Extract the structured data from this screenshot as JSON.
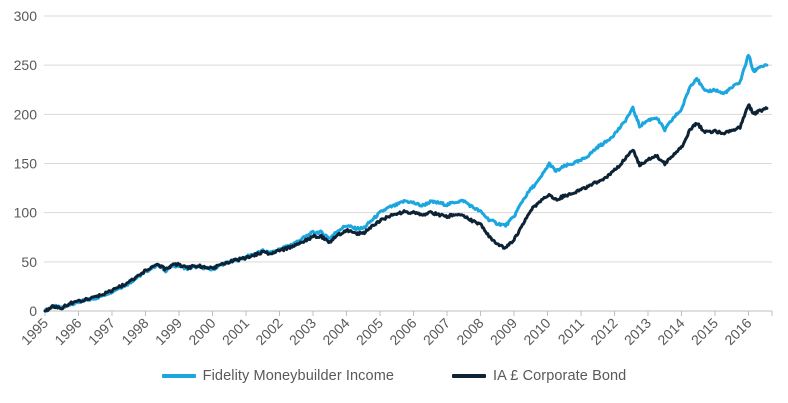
{
  "chart_style": {
    "background": "#FFFFFF",
    "grid_color": "#D9D9D9",
    "axis_color": "#BFBFBF",
    "tick_label_color": "#595959",
    "line_width": 3
  },
  "chart_data": {
    "type": "line",
    "title": "",
    "xlabel": "",
    "ylabel": "",
    "grid": "horizontal",
    "legend_position": "bottom",
    "x_ticks": [
      1995,
      1996,
      1997,
      1998,
      1999,
      2000,
      2001,
      2002,
      2003,
      2004,
      2005,
      2006,
      2007,
      2008,
      2009,
      2010,
      2011,
      2012,
      2013,
      2014,
      2015,
      2016
    ],
    "y_ticks": [
      0,
      50,
      100,
      150,
      200,
      250,
      300
    ],
    "ylim": [
      0,
      300
    ],
    "xlim": [
      1995,
      2016.7
    ],
    "x": [
      1995.0,
      1995.25,
      1995.5,
      1995.75,
      1996.0,
      1996.25,
      1996.5,
      1996.75,
      1997.0,
      1997.25,
      1997.5,
      1997.75,
      1998.0,
      1998.35,
      1998.6,
      1998.8,
      1999.0,
      1999.25,
      1999.5,
      1999.75,
      2000.0,
      2000.25,
      2000.5,
      2000.75,
      2001.0,
      2001.25,
      2001.5,
      2001.75,
      2002.0,
      2002.25,
      2002.5,
      2002.75,
      2003.0,
      2003.25,
      2003.5,
      2003.75,
      2004.0,
      2004.25,
      2004.5,
      2004.75,
      2005.0,
      2005.25,
      2005.5,
      2005.75,
      2006.0,
      2006.25,
      2006.5,
      2006.75,
      2007.0,
      2007.25,
      2007.5,
      2007.75,
      2008.0,
      2008.25,
      2008.5,
      2008.75,
      2009.0,
      2009.25,
      2009.5,
      2009.75,
      2010.05,
      2010.25,
      2010.5,
      2010.75,
      2011.0,
      2011.25,
      2011.5,
      2011.75,
      2012.0,
      2012.25,
      2012.55,
      2012.75,
      2013.0,
      2013.25,
      2013.5,
      2013.75,
      2014.0,
      2014.25,
      2014.45,
      2014.7,
      2015.0,
      2015.25,
      2015.5,
      2015.75,
      2016.0,
      2016.15,
      2016.3,
      2016.55
    ],
    "series": [
      {
        "name": "Fidelity Moneybuilder Income",
        "color": "#1BA6DF",
        "values": [
          0,
          5,
          3,
          7,
          9,
          11,
          13,
          16,
          20,
          24,
          28,
          34,
          40,
          47,
          41,
          46,
          46,
          43,
          45,
          44,
          42,
          47,
          50,
          52,
          55,
          58,
          61,
          59,
          63,
          66,
          70,
          75,
          80,
          80,
          74,
          82,
          87,
          84,
          84,
          92,
          100,
          105,
          108,
          112,
          110,
          107,
          111,
          110,
          108,
          111,
          112,
          106,
          101,
          93,
          89,
          87,
          96,
          112,
          124,
          133,
          150,
          142,
          147,
          150,
          153,
          159,
          167,
          172,
          180,
          190,
          206,
          188,
          194,
          197,
          184,
          196,
          205,
          228,
          237,
          223,
          225,
          221,
          227,
          233,
          261,
          243,
          248,
          250
        ]
      },
      {
        "name": "IA £ Corporate Bond",
        "color": "#0D2335",
        "values": [
          0,
          5,
          3,
          8,
          10,
          12,
          14,
          17,
          21,
          25,
          29,
          35,
          41,
          48,
          42,
          47,
          47,
          44,
          46,
          45,
          43,
          47,
          50,
          52,
          54,
          57,
          60,
          58,
          61,
          64,
          67,
          71,
          76,
          76,
          70,
          77,
          82,
          79,
          79,
          86,
          92,
          96,
          99,
          101,
          100,
          97,
          100,
          98,
          96,
          98,
          97,
          92,
          88,
          76,
          68,
          64,
          72,
          88,
          103,
          110,
          119,
          113,
          117,
          120,
          123,
          127,
          132,
          136,
          143,
          152,
          164,
          148,
          154,
          158,
          150,
          159,
          166,
          184,
          191,
          182,
          183,
          180,
          184,
          187,
          210,
          200,
          203,
          206
        ]
      }
    ]
  },
  "legend": {
    "items": [
      {
        "label": "Fidelity Moneybuilder Income",
        "color": "#1BA6DF"
      },
      {
        "label": "IA £ Corporate Bond",
        "color": "#0D2335"
      }
    ]
  }
}
